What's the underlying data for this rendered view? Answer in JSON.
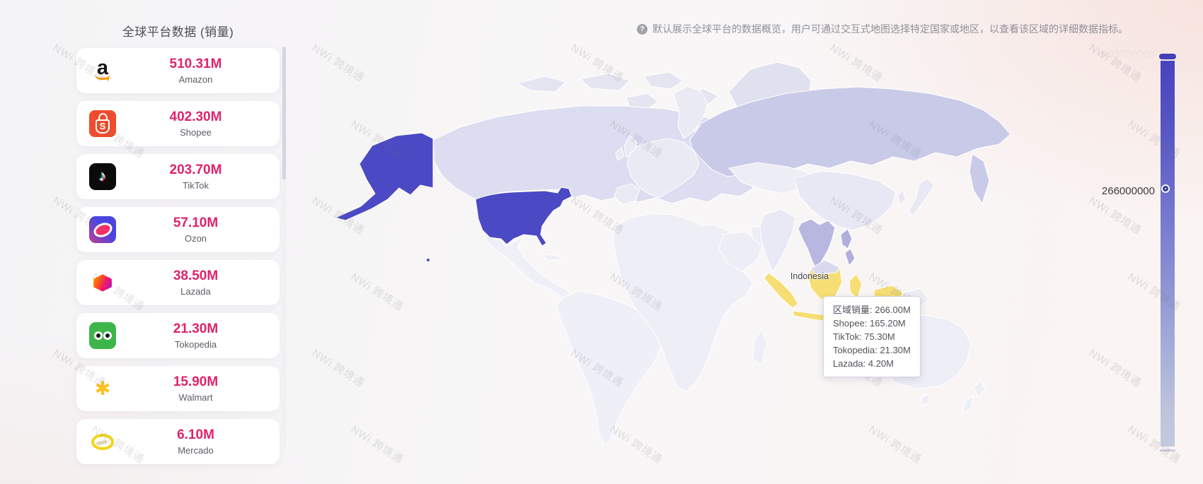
{
  "panel": {
    "title": "全球平台数据 (销量)"
  },
  "platforms": [
    {
      "name": "Amazon",
      "value": "510.31M"
    },
    {
      "name": "Shopee",
      "value": "402.30M"
    },
    {
      "name": "TikTok",
      "value": "203.70M"
    },
    {
      "name": "Ozon",
      "value": "57.10M"
    },
    {
      "name": "Lazada",
      "value": "38.50M"
    },
    {
      "name": "Tokopedia",
      "value": "21.30M"
    },
    {
      "name": "Walmart",
      "value": "15.90M"
    },
    {
      "name": "Mercado",
      "value": "6.10M"
    }
  ],
  "note": {
    "icon_glyph": "?",
    "text": "默认展示全球平台的数据概览，用户可通过交互式地图选择特定国家或地区，以查看该区域的详细数据指标。"
  },
  "map": {
    "highlight_label": "Indonesia",
    "tooltip": {
      "lines": [
        "区域销量: 266.00M",
        "Shopee: 165.20M",
        "TikTok: 75.30M",
        "Tokopedia: 21.30M",
        "Lazada: 4.20M"
      ]
    }
  },
  "legend": {
    "max": "403700000",
    "current": "266000000"
  },
  "watermark": {
    "text": "NWi 跨境通"
  },
  "colors": {
    "value_text": "#e0236b",
    "country_selected": "#4b49c4",
    "country_highlight": "#f6de74",
    "country_medium": "#c9cae8",
    "country_default": "#ededf6"
  }
}
